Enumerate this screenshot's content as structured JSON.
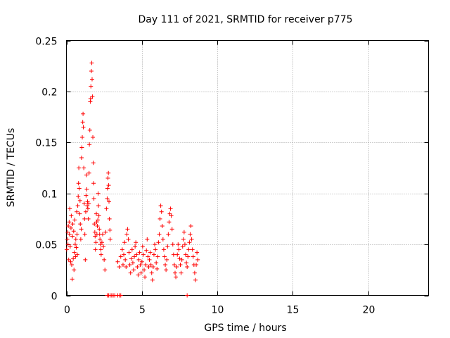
{
  "chart_data": {
    "type": "scatter",
    "title": "Day 111 of 2021, SRMTID for receiver p775",
    "xlabel": "GPS time / hours",
    "ylabel": "SRMTID / TECUs",
    "xlim": [
      0,
      24
    ],
    "ylim": [
      0,
      0.25
    ],
    "xticks": [
      0,
      5,
      10,
      15,
      20
    ],
    "yticks": [
      0,
      0.05,
      0.1,
      0.15,
      0.2,
      0.25
    ],
    "ytick_labels": [
      "0",
      "0.05",
      "0.1",
      "0.15",
      "0.2",
      "0.25"
    ],
    "grid": true,
    "marker": "+",
    "color": "#ff0000",
    "series": [
      {
        "name": "SRMTID",
        "points": [
          [
            0.02,
            0.045
          ],
          [
            0.05,
            0.055
          ],
          [
            0.08,
            0.062
          ],
          [
            0.1,
            0.05
          ],
          [
            0.12,
            0.068
          ],
          [
            0.15,
            0.035
          ],
          [
            0.18,
            0.072
          ],
          [
            0.2,
            0.06
          ],
          [
            0.22,
            0.085
          ],
          [
            0.25,
            0.048
          ],
          [
            0.28,
            0.033
          ],
          [
            0.3,
            0.066
          ],
          [
            0.32,
            0.078
          ],
          [
            0.35,
            0.03
          ],
          [
            0.38,
            0.016
          ],
          [
            0.4,
            0.058
          ],
          [
            0.42,
            0.07
          ],
          [
            0.45,
            0.036
          ],
          [
            0.48,
            0.063
          ],
          [
            0.5,
            0.025
          ],
          [
            0.52,
            0.042
          ],
          [
            0.55,
            0.074
          ],
          [
            0.58,
            0.05
          ],
          [
            0.6,
            0.038
          ],
          [
            0.62,
            0.055
          ],
          [
            0.65,
            0.047
          ],
          [
            0.68,
            0.082
          ],
          [
            0.7,
            0.06
          ],
          [
            0.72,
            0.04
          ],
          [
            0.75,
            0.088
          ],
          [
            0.78,
            0.097
          ],
          [
            0.8,
            0.11
          ],
          [
            0.82,
            0.125
          ],
          [
            0.85,
            0.105
          ],
          [
            0.88,
            0.08
          ],
          [
            0.9,
            0.093
          ],
          [
            0.92,
            0.07
          ],
          [
            0.95,
            0.055
          ],
          [
            0.98,
            0.065
          ],
          [
            1.0,
            0.135
          ],
          [
            1.02,
            0.145
          ],
          [
            1.05,
            0.155
          ],
          [
            1.08,
            0.17
          ],
          [
            1.1,
            0.178
          ],
          [
            1.12,
            0.165
          ],
          [
            1.15,
            0.125
          ],
          [
            1.18,
            0.09
          ],
          [
            1.2,
            0.075
          ],
          [
            1.22,
            0.06
          ],
          [
            1.25,
            0.035
          ],
          [
            1.28,
            0.082
          ],
          [
            1.3,
            0.098
          ],
          [
            1.32,
            0.118
          ],
          [
            1.35,
            0.104
          ],
          [
            1.38,
            0.088
          ],
          [
            1.4,
            0.092
          ],
          [
            1.42,
            0.085
          ],
          [
            1.45,
            0.075
          ],
          [
            1.48,
            0.09
          ],
          [
            1.5,
            0.12
          ],
          [
            1.52,
            0.148
          ],
          [
            1.55,
            0.162
          ],
          [
            1.58,
            0.19
          ],
          [
            1.6,
            0.193
          ],
          [
            1.62,
            0.205
          ],
          [
            1.65,
            0.22
          ],
          [
            1.68,
            0.228
          ],
          [
            1.7,
            0.212
          ],
          [
            1.72,
            0.195
          ],
          [
            1.75,
            0.155
          ],
          [
            1.78,
            0.13
          ],
          [
            1.8,
            0.11
          ],
          [
            1.82,
            0.095
          ],
          [
            1.85,
            0.07
          ],
          [
            1.88,
            0.062
          ],
          [
            1.9,
            0.058
          ],
          [
            1.92,
            0.045
          ],
          [
            1.95,
            0.052
          ],
          [
            1.98,
            0.08
          ],
          [
            2.0,
            0.072
          ],
          [
            2.02,
            0.06
          ],
          [
            2.05,
            0.068
          ],
          [
            2.08,
            0.074
          ],
          [
            2.1,
            0.1
          ],
          [
            2.12,
            0.088
          ],
          [
            2.15,
            0.078
          ],
          [
            2.18,
            0.065
          ],
          [
            2.2,
            0.06
          ],
          [
            2.22,
            0.055
          ],
          [
            2.25,
            0.05
          ],
          [
            2.28,
            0.045
          ],
          [
            2.3,
            0.04
          ],
          [
            2.35,
            0.052
          ],
          [
            2.4,
            0.06
          ],
          [
            2.45,
            0.048
          ],
          [
            2.5,
            0.035
          ],
          [
            2.55,
            0.025
          ],
          [
            2.6,
            0.062
          ],
          [
            2.65,
            0.085
          ],
          [
            2.7,
            0.095
          ],
          [
            2.72,
            0.105
          ],
          [
            2.75,
            0.115
          ],
          [
            2.78,
            0.12
          ],
          [
            2.8,
            0.108
          ],
          [
            2.82,
            0.092
          ],
          [
            2.85,
            0.075
          ],
          [
            2.88,
            0.064
          ],
          [
            2.9,
            0.055
          ],
          [
            2.7,
            0.0
          ],
          [
            2.8,
            0.0
          ],
          [
            2.9,
            0.0
          ],
          [
            3.0,
            0.0
          ],
          [
            3.1,
            0.0
          ],
          [
            3.2,
            0.0
          ],
          [
            3.4,
            0.0
          ],
          [
            3.5,
            0.0
          ],
          [
            3.6,
            0.0
          ],
          [
            8.0,
            0.0
          ],
          [
            3.4,
            0.033
          ],
          [
            3.5,
            0.028
          ],
          [
            3.6,
            0.038
          ],
          [
            3.7,
            0.045
          ],
          [
            3.75,
            0.03
          ],
          [
            3.8,
            0.04
          ],
          [
            3.85,
            0.052
          ],
          [
            3.9,
            0.035
          ],
          [
            3.95,
            0.028
          ],
          [
            4.0,
            0.06
          ],
          [
            4.05,
            0.065
          ],
          [
            4.1,
            0.055
          ],
          [
            4.15,
            0.042
          ],
          [
            4.2,
            0.03
          ],
          [
            4.25,
            0.022
          ],
          [
            4.3,
            0.036
          ],
          [
            4.35,
            0.045
          ],
          [
            4.4,
            0.032
          ],
          [
            4.45,
            0.025
          ],
          [
            4.5,
            0.038
          ],
          [
            4.55,
            0.048
          ],
          [
            4.6,
            0.052
          ],
          [
            4.65,
            0.04
          ],
          [
            4.7,
            0.028
          ],
          [
            4.75,
            0.02
          ],
          [
            4.8,
            0.035
          ],
          [
            4.85,
            0.042
          ],
          [
            4.9,
            0.03
          ],
          [
            4.95,
            0.022
          ],
          [
            5.0,
            0.033
          ],
          [
            5.05,
            0.048
          ],
          [
            5.1,
            0.04
          ],
          [
            5.15,
            0.025
          ],
          [
            5.2,
            0.018
          ],
          [
            5.25,
            0.03
          ],
          [
            5.3,
            0.044
          ],
          [
            5.35,
            0.055
          ],
          [
            5.4,
            0.038
          ],
          [
            5.45,
            0.028
          ],
          [
            5.5,
            0.035
          ],
          [
            5.55,
            0.042
          ],
          [
            5.6,
            0.03
          ],
          [
            5.65,
            0.022
          ],
          [
            5.7,
            0.015
          ],
          [
            5.75,
            0.028
          ],
          [
            5.8,
            0.04
          ],
          [
            5.85,
            0.05
          ],
          [
            5.9,
            0.045
          ],
          [
            5.95,
            0.032
          ],
          [
            6.0,
            0.026
          ],
          [
            6.05,
            0.038
          ],
          [
            6.1,
            0.052
          ],
          [
            6.15,
            0.06
          ],
          [
            6.2,
            0.075
          ],
          [
            6.25,
            0.088
          ],
          [
            6.3,
            0.082
          ],
          [
            6.35,
            0.068
          ],
          [
            6.4,
            0.055
          ],
          [
            6.45,
            0.045
          ],
          [
            6.5,
            0.038
          ],
          [
            6.55,
            0.03
          ],
          [
            6.6,
            0.025
          ],
          [
            6.65,
            0.035
          ],
          [
            6.7,
            0.048
          ],
          [
            6.75,
            0.06
          ],
          [
            6.8,
            0.072
          ],
          [
            6.85,
            0.08
          ],
          [
            6.9,
            0.085
          ],
          [
            6.95,
            0.078
          ],
          [
            7.0,
            0.065
          ],
          [
            7.05,
            0.05
          ],
          [
            7.1,
            0.04
          ],
          [
            7.15,
            0.03
          ],
          [
            7.2,
            0.022
          ],
          [
            7.25,
            0.018
          ],
          [
            7.3,
            0.028
          ],
          [
            7.35,
            0.04
          ],
          [
            7.4,
            0.05
          ],
          [
            7.45,
            0.045
          ],
          [
            7.5,
            0.036
          ],
          [
            7.55,
            0.03
          ],
          [
            7.6,
            0.022
          ],
          [
            7.65,
            0.035
          ],
          [
            7.7,
            0.048
          ],
          [
            7.75,
            0.055
          ],
          [
            7.8,
            0.062
          ],
          [
            7.85,
            0.05
          ],
          [
            7.9,
            0.04
          ],
          [
            7.95,
            0.032
          ],
          [
            8.0,
            0.028
          ],
          [
            8.05,
            0.038
          ],
          [
            8.1,
            0.045
          ],
          [
            8.15,
            0.052
          ],
          [
            8.2,
            0.06
          ],
          [
            8.25,
            0.068
          ],
          [
            8.3,
            0.055
          ],
          [
            8.35,
            0.045
          ],
          [
            8.4,
            0.038
          ],
          [
            8.45,
            0.03
          ],
          [
            8.5,
            0.022
          ],
          [
            8.55,
            0.015
          ],
          [
            8.6,
            0.03
          ],
          [
            8.65,
            0.042
          ],
          [
            8.7,
            0.035
          ]
        ]
      }
    ]
  }
}
